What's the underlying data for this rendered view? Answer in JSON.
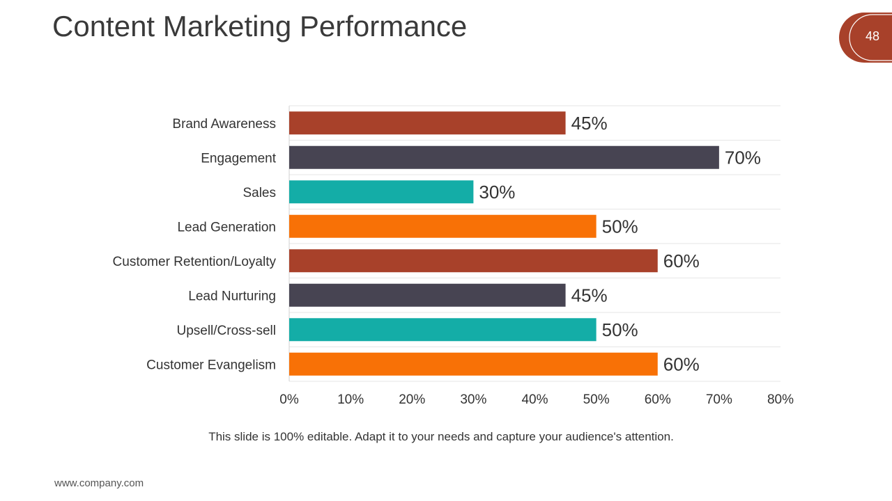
{
  "slide": {
    "title": "Content Marketing Performance",
    "page_number": "48",
    "caption": "This slide is 100% editable. Adapt it to your needs and capture your audience's attention.",
    "footer": "www.company.com"
  },
  "colors": {
    "accent": "#a8412a",
    "dark": "#474452",
    "teal": "#14ada7",
    "orange": "#f87106"
  },
  "chart_data": {
    "type": "bar",
    "orientation": "horizontal",
    "categories": [
      "Brand Awareness",
      "Engagement",
      "Sales",
      "Lead Generation",
      "Customer Retention/Loyalty",
      "Lead Nurturing",
      "Upsell/Cross-sell",
      "Customer Evangelism"
    ],
    "values": [
      45,
      70,
      30,
      50,
      60,
      45,
      50,
      60
    ],
    "value_labels": [
      "45%",
      "70%",
      "30%",
      "50%",
      "60%",
      "45%",
      "50%",
      "60%"
    ],
    "bar_colors": [
      "#a8412a",
      "#474452",
      "#14ada7",
      "#f87106",
      "#a8412a",
      "#474452",
      "#14ada7",
      "#f87106"
    ],
    "xlim": [
      0,
      80
    ],
    "xticks": [
      0,
      10,
      20,
      30,
      40,
      50,
      60,
      70,
      80
    ],
    "xtick_labels": [
      "0%",
      "10%",
      "20%",
      "30%",
      "40%",
      "50%",
      "60%",
      "70%",
      "80%"
    ],
    "title": "",
    "xlabel": "",
    "ylabel": "",
    "grid": "horizontal"
  }
}
